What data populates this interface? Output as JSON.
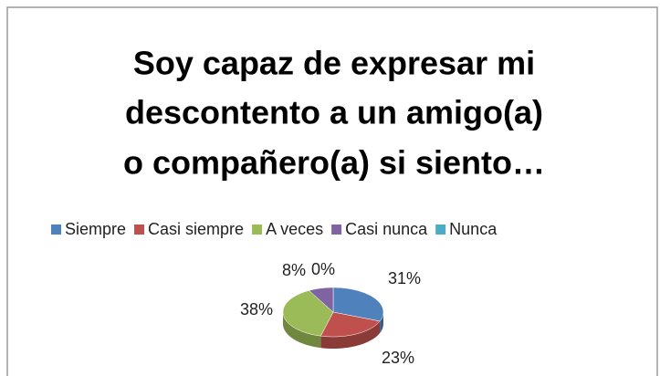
{
  "chart_data": {
    "type": "pie3d",
    "title": [
      "Soy capaz de expresar mi",
      "descontento a un amigo(a)",
      "o compañero(a) si siento…"
    ],
    "categories": [
      "Siempre",
      "Casi siempre",
      "A veces",
      "Casi nunca",
      "Nunca"
    ],
    "values": [
      31,
      23,
      38,
      8,
      0
    ],
    "value_labels": [
      "31%",
      "23%",
      "38%",
      "8%",
      "0%"
    ],
    "colors": [
      "#4f81bd",
      "#c0504d",
      "#9bbb59",
      "#8064a2",
      "#4bacc6"
    ],
    "legend": "top"
  }
}
